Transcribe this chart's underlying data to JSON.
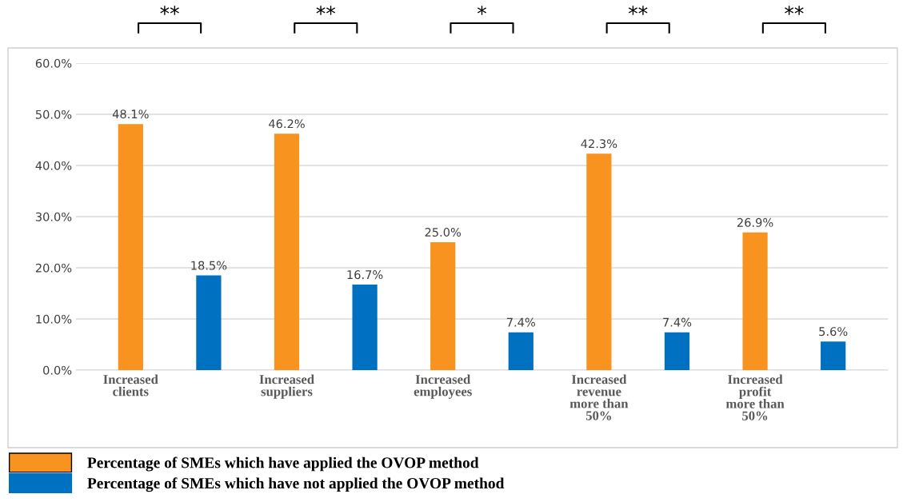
{
  "chart_data": {
    "type": "bar",
    "categories": [
      "Increased\nclients",
      "Increased\nsuppliers",
      "Increased\nemployees",
      "Increased\nrevenue\nmore than\n50%",
      "Increased\nprofit\nmore than\n50%"
    ],
    "series": [
      {
        "name": "Percentage of SMEs which have applied the OVOP method",
        "color": "#f7931e",
        "values": [
          48.1,
          46.2,
          25.0,
          42.3,
          26.9
        ],
        "value_labels": [
          "48.1%",
          "46.2%",
          "25.0%",
          "42.3%",
          "26.9%"
        ]
      },
      {
        "name": "Percentage of SMEs which have not applied the OVOP method",
        "color": "#0070c0",
        "values": [
          18.5,
          16.7,
          7.4,
          7.4,
          5.6
        ],
        "value_labels": [
          "18.5%",
          "16.7%",
          "7.4%",
          "7.4%",
          "5.6%"
        ]
      }
    ],
    "ylim": [
      0,
      60
    ],
    "yticks": [
      {
        "value": 0,
        "label": "0.0%"
      },
      {
        "value": 10,
        "label": "10.0%"
      },
      {
        "value": 20,
        "label": "20.0%"
      },
      {
        "value": 30,
        "label": "30.0%"
      },
      {
        "value": 40,
        "label": "40.0%"
      },
      {
        "value": 50,
        "label": "50.0%"
      },
      {
        "value": 60,
        "label": "60.0%"
      }
    ],
    "grid": "y",
    "legend": "bottom",
    "annotations": [
      "**",
      "**",
      "*",
      "**",
      "**"
    ]
  }
}
